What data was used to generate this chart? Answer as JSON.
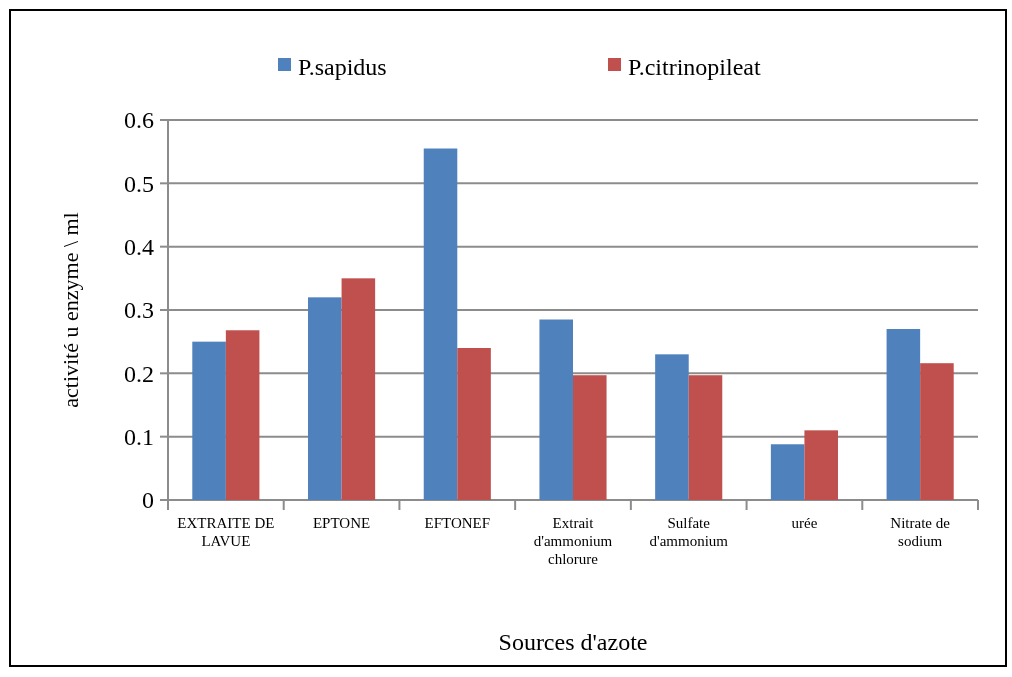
{
  "chart_data": {
    "type": "bar",
    "xlabel": "Sources d'azote",
    "ylabel": "activité u enzyme \\ ml",
    "categories": [
      "EXTRAITE DE LAVUE",
      "EPTONE",
      "EFTONEF",
      "Extrait d'ammonium chlorure",
      "Sulfate d'ammonium",
      "urée",
      "Nitrate de sodium"
    ],
    "series": [
      {
        "name": "P.sapidus",
        "color": "#4f81bd",
        "values": [
          0.25,
          0.32,
          0.555,
          0.285,
          0.23,
          0.088,
          0.27
        ]
      },
      {
        "name": "P.citrinopileat",
        "color": "#c0504d",
        "values": [
          0.268,
          0.35,
          0.24,
          0.197,
          0.197,
          0.11,
          0.216
        ]
      }
    ],
    "ylim": [
      0,
      0.6
    ],
    "yticks": [
      0,
      0.1,
      0.2,
      0.3,
      0.4,
      0.5,
      0.6
    ],
    "grid": "y",
    "legend": "top"
  }
}
